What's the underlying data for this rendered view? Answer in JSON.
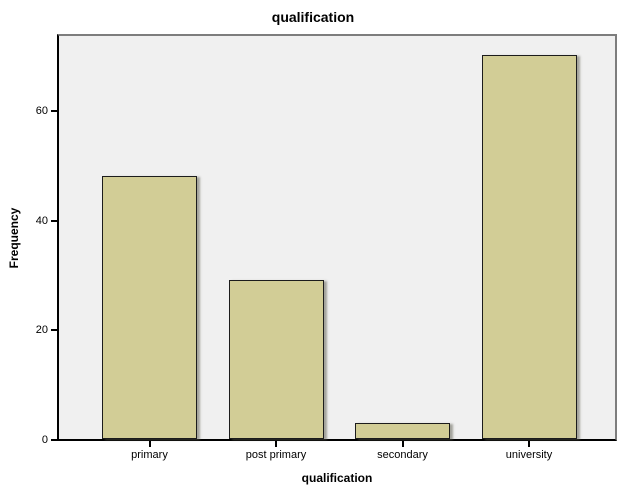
{
  "chart_data": {
    "type": "bar",
    "title": "qualification",
    "xlabel": "qualification",
    "ylabel": "Frequency",
    "categories": [
      "primary",
      "post primary",
      "secondary",
      "university"
    ],
    "values": [
      48,
      29,
      3,
      70
    ],
    "yticks": [
      0,
      20,
      40,
      60
    ],
    "ylim": [
      0,
      73.5
    ],
    "legend": "none",
    "grid": "off",
    "colors": {
      "bar_fill": "#d2cd96",
      "bar_border": "#1c1c1c",
      "plot_background": "#f0f0f0",
      "page_background": "#ffffff",
      "axis_line": "#000000",
      "frame_line": "#7d7d7d"
    }
  }
}
